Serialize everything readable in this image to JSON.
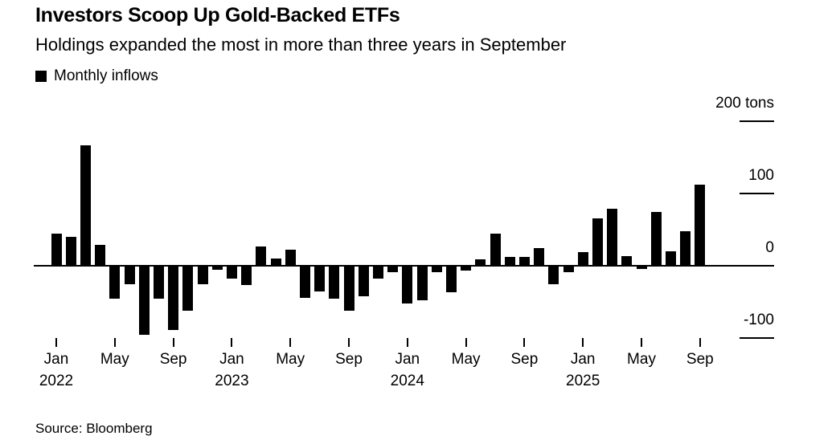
{
  "header": {
    "title": "Investors Scoop Up Gold-Backed ETFs",
    "subtitle": "Holdings expanded the most in more than three years in September"
  },
  "legend": {
    "label": "Monthly inflows",
    "swatch_color": "#000000"
  },
  "footer": {
    "source": "Source: Bloomberg"
  },
  "colors": {
    "background": "#ffffff",
    "bar": "#000000",
    "axis": "#000000",
    "text": "#000000"
  },
  "chart_data": {
    "type": "bar",
    "title": "Investors Scoop Up Gold-Backed ETFs",
    "subtitle": "Holdings expanded the most in more than three years in September",
    "series_name": "Monthly inflows",
    "unit": "tons",
    "ylim": [
      -130,
      210
    ],
    "grid": false,
    "legend_position": "top-left",
    "y_axis_side": "right",
    "x": [
      "Jan 2022",
      "Feb 2022",
      "Mar 2022",
      "Apr 2022",
      "May 2022",
      "Jun 2022",
      "Jul 2022",
      "Aug 2022",
      "Sep 2022",
      "Oct 2022",
      "Nov 2022",
      "Dec 2022",
      "Jan 2023",
      "Feb 2023",
      "Mar 2023",
      "Apr 2023",
      "May 2023",
      "Jun 2023",
      "Jul 2023",
      "Aug 2023",
      "Sep 2023",
      "Oct 2023",
      "Nov 2023",
      "Dec 2023",
      "Jan 2024",
      "Feb 2024",
      "Mar 2024",
      "Apr 2024",
      "May 2024",
      "Jun 2024",
      "Jul 2024",
      "Aug 2024",
      "Sep 2024",
      "Oct 2024",
      "Nov 2024",
      "Dec 2024",
      "Jan 2025",
      "Feb 2025",
      "Mar 2025",
      "Apr 2025",
      "May 2025",
      "Jun 2025",
      "Jul 2025",
      "Aug 2025",
      "Sep 2025"
    ],
    "values": [
      44,
      40,
      167,
      29,
      -45,
      -26,
      -96,
      -46,
      -89,
      -62,
      -26,
      -6,
      -18,
      -27,
      27,
      10,
      22,
      -44,
      -36,
      -46,
      -62,
      -42,
      -18,
      -9,
      -52,
      -48,
      -9,
      -37,
      -7,
      9,
      45,
      12,
      12,
      24,
      -26,
      -9,
      19,
      66,
      79,
      13,
      -4,
      75,
      20,
      48,
      112
    ],
    "y_ticks": [
      {
        "label": "200 tons",
        "value": 200
      },
      {
        "label": "100",
        "value": 100
      },
      {
        "label": "0",
        "value": 0
      },
      {
        "label": "-100",
        "value": -100
      }
    ],
    "x_ticks": [
      {
        "index": 0,
        "month": "Jan",
        "year": "2022"
      },
      {
        "index": 4,
        "month": "May",
        "year": ""
      },
      {
        "index": 8,
        "month": "Sep",
        "year": ""
      },
      {
        "index": 12,
        "month": "Jan",
        "year": "2023"
      },
      {
        "index": 16,
        "month": "May",
        "year": ""
      },
      {
        "index": 20,
        "month": "Sep",
        "year": ""
      },
      {
        "index": 24,
        "month": "Jan",
        "year": "2024"
      },
      {
        "index": 28,
        "month": "May",
        "year": ""
      },
      {
        "index": 32,
        "month": "Sep",
        "year": ""
      },
      {
        "index": 36,
        "month": "Jan",
        "year": "2025"
      },
      {
        "index": 40,
        "month": "May",
        "year": ""
      },
      {
        "index": 44,
        "month": "Sep",
        "year": ""
      }
    ]
  }
}
